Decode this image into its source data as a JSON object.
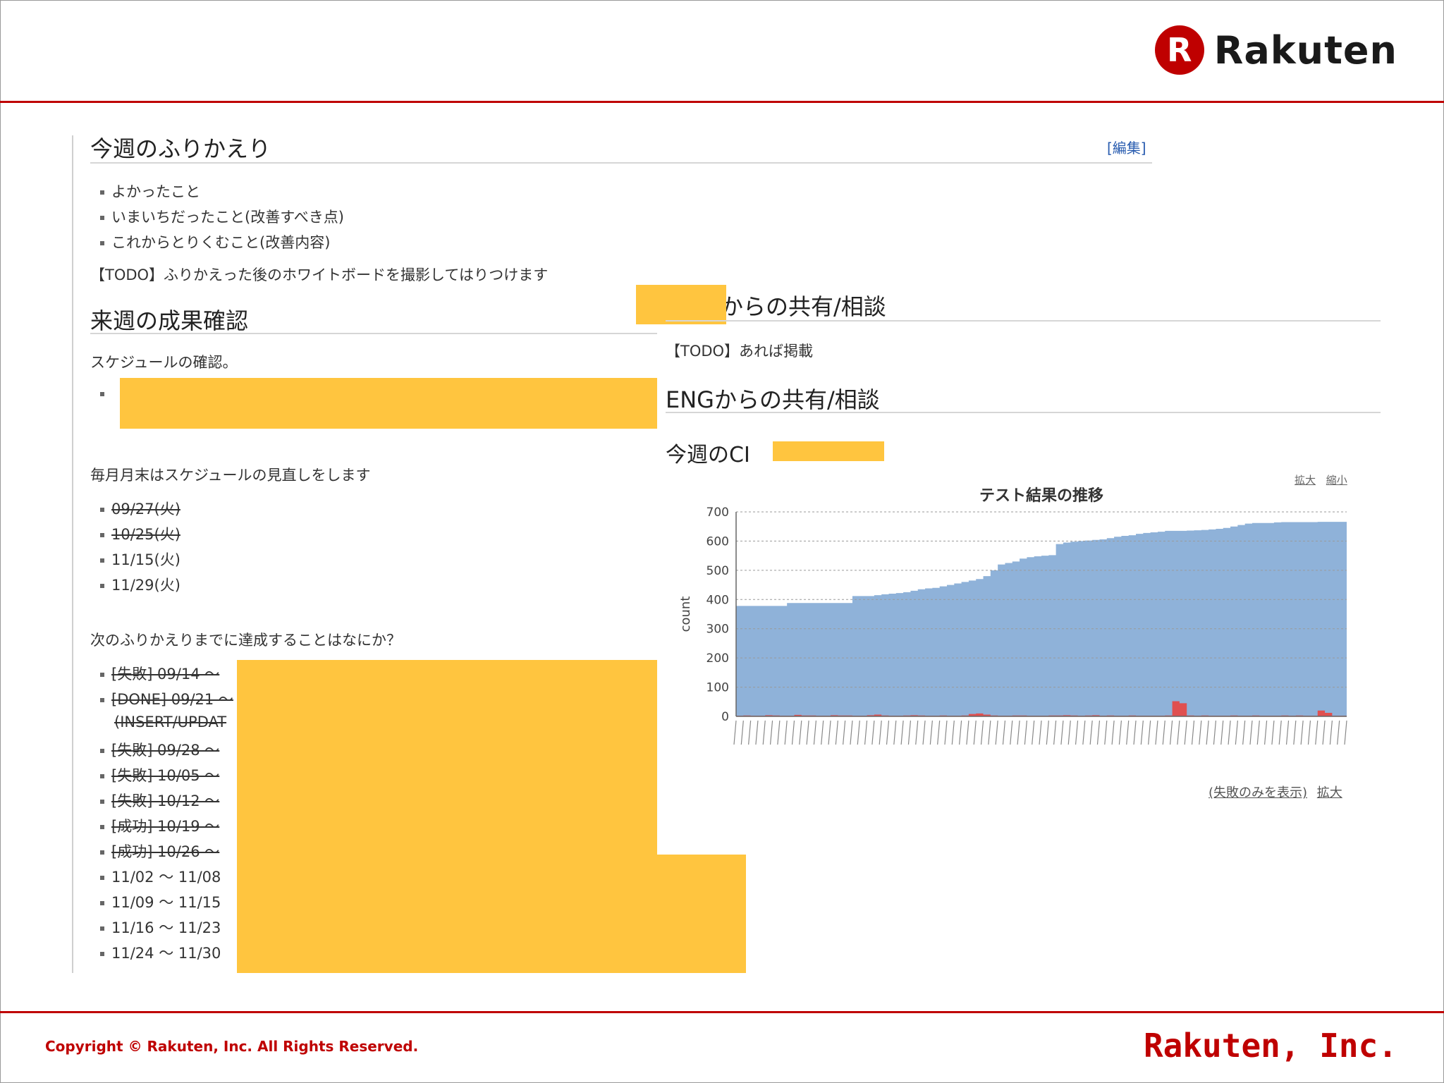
{
  "header": {
    "logo_letter": "R",
    "logo_text": "Rakuten"
  },
  "footer": {
    "copyright": "Copyright © Rakuten, Inc. All Rights Reserved.",
    "company": "Rakuten, Inc."
  },
  "retro": {
    "title": "今週のふりかえり",
    "edit_label": "[編集]",
    "items": [
      "よかったこと",
      "いまいちだったこと(改善すべき点)",
      "これからとりくむこと(改善内容)"
    ],
    "todo": "【TODO】ふりかえった後のホワイトボードを撮影してはりつけます"
  },
  "next_week": {
    "title": "来週の成果確認",
    "schedule_text": "スケジュールの確認。",
    "review_text": "毎月月末はスケジュールの見直しをします",
    "dates": [
      {
        "label": "09/27(火)",
        "done": true
      },
      {
        "label": "10/25(火)",
        "done": true
      },
      {
        "label": "11/15(火)",
        "done": false
      },
      {
        "label": "11/29(火)",
        "done": false
      }
    ],
    "goal_question": "次のふりかえりまでに達成することはなにか？",
    "goals": [
      {
        "label": "[失敗] 09/14 ～",
        "done": true
      },
      {
        "label": "[DONE] 09/21 ～",
        "done": true
      },
      {
        "label": "(INSERT/UPDAT",
        "done": true
      },
      {
        "label": "[失敗] 09/28 ～",
        "done": true
      },
      {
        "label": "[失敗] 10/05 ～",
        "done": true
      },
      {
        "label": "[失敗] 10/12 ～",
        "done": true
      },
      {
        "label": "[成功] 10/19 ～",
        "done": true
      },
      {
        "label": "[成功] 10/26 ～",
        "done": true
      },
      {
        "label": "11/02 ～ 11/08",
        "done": false
      },
      {
        "label": "11/09 ～ 11/15",
        "done": false
      },
      {
        "label": "11/16 ～ 11/23",
        "done": false
      },
      {
        "label": "11/24 ～ 11/30",
        "done": false
      }
    ]
  },
  "share": {
    "title1": "からの共有/相談",
    "todo1": "【TODO】あれば掲載",
    "title2": "ENGからの共有/相談",
    "title3": "今週のCI"
  },
  "chart_links": {
    "a": "拡大",
    "b": "縮小"
  },
  "chart_bottom_links": {
    "a": "(失敗のみを表示)",
    "b": "拡大"
  },
  "chart_data": {
    "type": "area",
    "title": "テスト結果の推移",
    "ylabel": "count",
    "ylim": [
      0,
      700
    ],
    "yticks": [
      0,
      100,
      200,
      300,
      400,
      500,
      600,
      700
    ],
    "grid": true,
    "series": [
      {
        "color": "#8fb2d9",
        "values": [
          378,
          378,
          378,
          378,
          378,
          378,
          378,
          388,
          388,
          388,
          388,
          388,
          388,
          388,
          388,
          388,
          412,
          412,
          412,
          415,
          418,
          420,
          422,
          425,
          430,
          435,
          438,
          440,
          445,
          450,
          455,
          460,
          465,
          470,
          480,
          500,
          520,
          525,
          530,
          540,
          545,
          548,
          550,
          552,
          590,
          595,
          598,
          600,
          602,
          604,
          606,
          610,
          615,
          618,
          620,
          625,
          628,
          630,
          632,
          635,
          635,
          635,
          636,
          637,
          638,
          640,
          642,
          645,
          650,
          655,
          660,
          662,
          662,
          662,
          664,
          665,
          665,
          665,
          665,
          665,
          666,
          666,
          666,
          666,
          667
        ]
      },
      {
        "color": "#e05050",
        "values": [
          2,
          3,
          2,
          2,
          4,
          3,
          2,
          2,
          5,
          3,
          3,
          2,
          2,
          4,
          3,
          3,
          2,
          2,
          4,
          6,
          3,
          2,
          2,
          3,
          4,
          3,
          2,
          2,
          3,
          2,
          2,
          3,
          8,
          10,
          6,
          3,
          2,
          2,
          3,
          3,
          2,
          2,
          2,
          3,
          3,
          4,
          3,
          2,
          3,
          4,
          2,
          3,
          2,
          2,
          3,
          2,
          2,
          2,
          2,
          3,
          52,
          45,
          3,
          2,
          3,
          2,
          2,
          2,
          3,
          2,
          2,
          3,
          2,
          2,
          2,
          3,
          2,
          3,
          2,
          2,
          20,
          12,
          2,
          2,
          3
        ]
      }
    ]
  }
}
